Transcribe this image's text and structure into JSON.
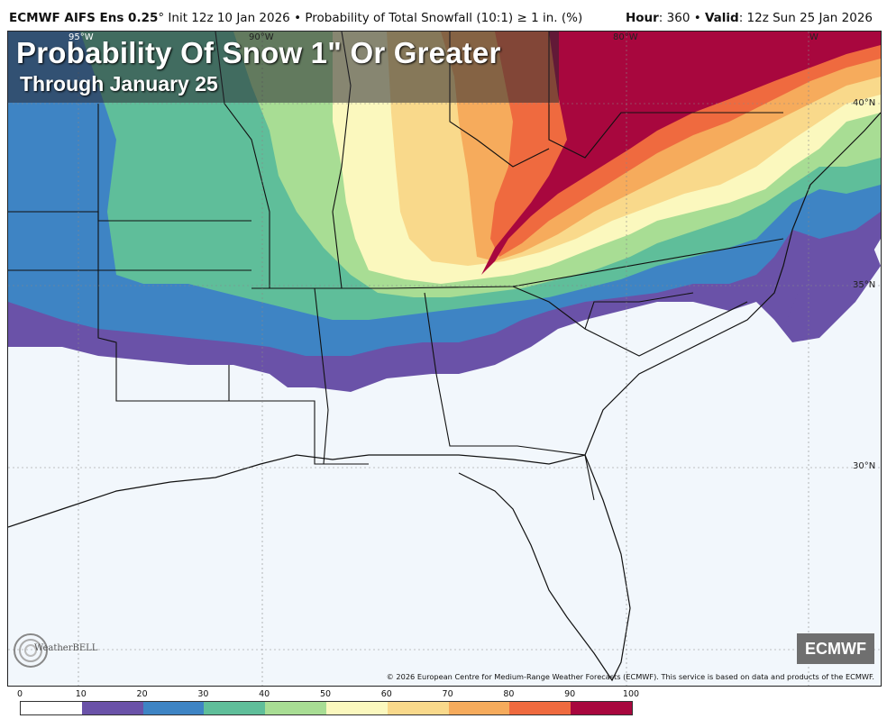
{
  "header": {
    "model": "ECMWF AIFS Ens 0.25",
    "degree": "°",
    "init": " Init 12z 10 Jan 2026",
    "bullet": " • ",
    "product": "Probability of Total Snowfall (10:1) ≥ 1 in. (%)",
    "hour_label": "Hour",
    "hour_value": ": 360 • ",
    "valid_label": "Valid",
    "valid_value": ": 12z Sun 25 Jan 2026"
  },
  "title": {
    "main": "Probability Of Snow 1\" Or Greater",
    "sub": "Through January 25"
  },
  "latitudes": [
    "40°N",
    "35°N",
    "30°N",
    "°N"
  ],
  "longitudes": [
    "95°W",
    "90°W",
    "80°W",
    "W"
  ],
  "badge": "ECMWF",
  "copyright": "© 2026 European Centre for Medium-Range Weather Forecasts (ECMWF). This service is based on data and products of the ECMWF.",
  "logo_text": "WeatherBELL",
  "scale": {
    "ticks": [
      "0",
      "10",
      "20",
      "30",
      "40",
      "50",
      "60",
      "70",
      "80",
      "90",
      "100"
    ],
    "colors": [
      "#ffffff",
      "#6a52a8",
      "#3e84c4",
      "#5fbe9a",
      "#a8dd94",
      "#fbf8be",
      "#f9d98b",
      "#f6ab5c",
      "#ef6a3f",
      "#a8073e"
    ]
  }
}
